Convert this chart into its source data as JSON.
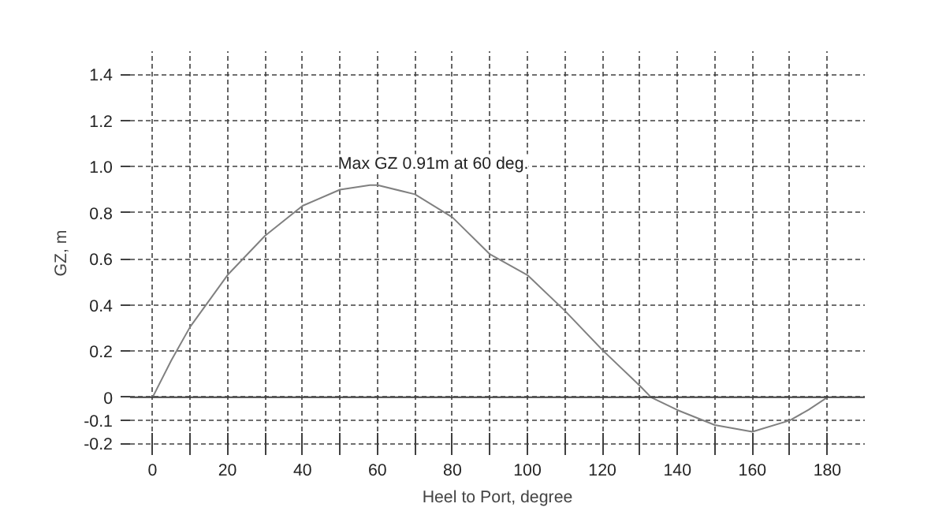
{
  "chart_data": {
    "type": "line",
    "xlabel": "Heel to Port, degree",
    "ylabel": "GZ, m",
    "x": [
      0,
      5,
      10,
      20,
      30,
      40,
      50,
      58,
      60,
      70,
      80,
      90,
      100,
      110,
      120,
      130,
      133,
      140,
      150,
      160,
      170,
      175,
      180
    ],
    "series": [
      {
        "color": "#808080",
        "values": [
          0,
          0.16,
          0.305,
          0.53,
          0.7,
          0.83,
          0.9,
          0.92,
          0.92,
          0.88,
          0.78,
          0.62,
          0.53,
          0.375,
          0.205,
          0.05,
          0,
          -0.055,
          -0.12,
          -0.149,
          -0.1,
          -0.054,
          0
        ]
      }
    ],
    "xlim": [
      -6,
      190
    ],
    "ylim": [
      -0.25,
      1.5
    ],
    "xticks": [
      0,
      {
        "value": 10,
        "label": null
      },
      20,
      {
        "value": 30,
        "label": null
      },
      40,
      {
        "value": 50,
        "label": null
      },
      60,
      {
        "value": 70,
        "label": null
      },
      80,
      {
        "value": 90,
        "label": null
      },
      100,
      {
        "value": 110,
        "label": null
      },
      120,
      {
        "value": 130,
        "label": null
      },
      140,
      {
        "value": 150,
        "label": null
      },
      160,
      {
        "value": 170,
        "label": null
      },
      180
    ],
    "yticks": [
      -0.2,
      -0.1,
      0,
      0.2,
      0.4,
      0.6,
      0.8,
      {
        "value": 1,
        "label": "1.0"
      },
      1.2,
      1.4
    ],
    "ref_lines": [
      {
        "axis": "y",
        "value": 0,
        "color": "#404040"
      }
    ],
    "annotations": [
      {
        "text": "Max GZ 0.91m at 60 deg.",
        "x": 60,
        "y": 0.91
      }
    ],
    "grid": true,
    "line_style": "solid",
    "marker": "none"
  }
}
